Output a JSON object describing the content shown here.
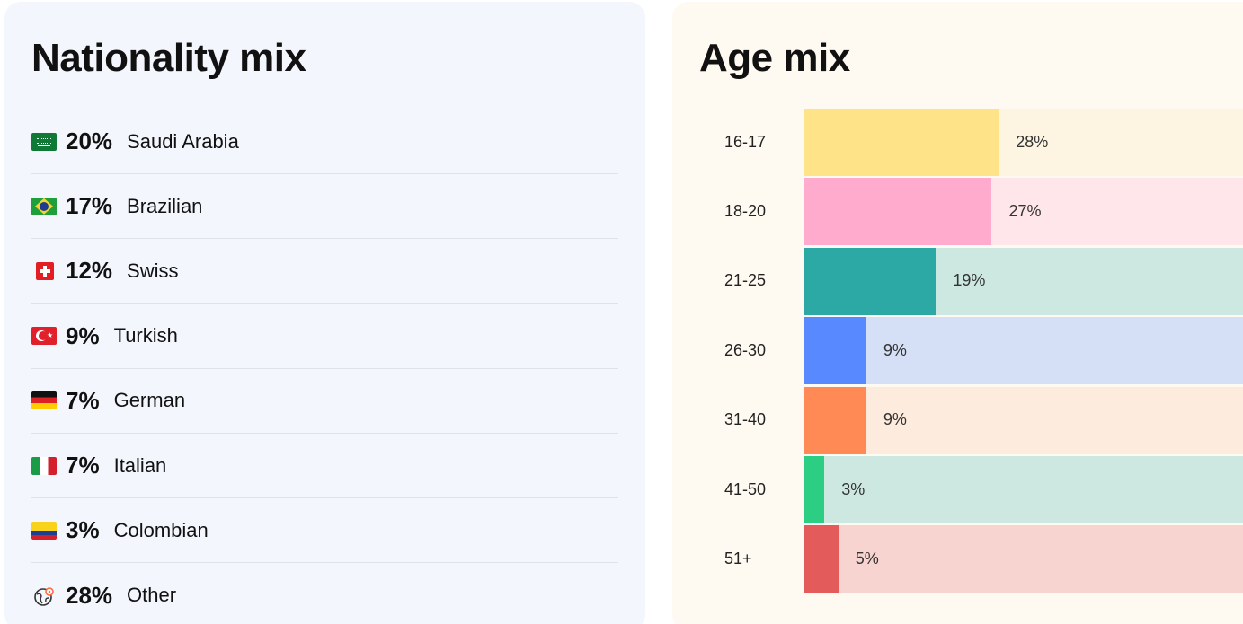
{
  "nationality": {
    "title": "Nationality mix",
    "items": [
      {
        "flag": "saudi-arabia-flag-icon",
        "pct": "20%",
        "name": "Saudi Arabia"
      },
      {
        "flag": "brazil-flag-icon",
        "pct": "17%",
        "name": "Brazilian"
      },
      {
        "flag": "switzerland-flag-icon",
        "pct": "12%",
        "name": "Swiss"
      },
      {
        "flag": "turkey-flag-icon",
        "pct": "9%",
        "name": "Turkish"
      },
      {
        "flag": "germany-flag-icon",
        "pct": "7%",
        "name": "German"
      },
      {
        "flag": "italy-flag-icon",
        "pct": "7%",
        "name": "Italian"
      },
      {
        "flag": "colombia-flag-icon",
        "pct": "3%",
        "name": "Colombian"
      },
      {
        "flag": "globe-icon",
        "pct": "28%",
        "name": "Other"
      }
    ]
  },
  "age": {
    "title": "Age mix"
  },
  "chart_data": {
    "type": "bar",
    "orientation": "horizontal",
    "title": "Age mix",
    "categories": [
      "16-17",
      "18-20",
      "21-25",
      "26-30",
      "31-40",
      "41-50",
      "51+"
    ],
    "values": [
      28,
      27,
      19,
      9,
      9,
      3,
      5
    ],
    "value_labels": [
      "28%",
      "27%",
      "19%",
      "9%",
      "9%",
      "3%",
      "5%"
    ],
    "bar_colors": [
      "#ffe388",
      "#ffabcd",
      "#2ca8a5",
      "#5889fe",
      "#ff8a55",
      "#2bce82",
      "#e35c5b"
    ],
    "track_colors": [
      "#fdf4e2",
      "#ffe6ea",
      "#cce8e1",
      "#d5e0f6",
      "#fdebdd",
      "#cde8e1",
      "#f7d4d0"
    ],
    "xlim": [
      0,
      66
    ],
    "grid": false
  }
}
